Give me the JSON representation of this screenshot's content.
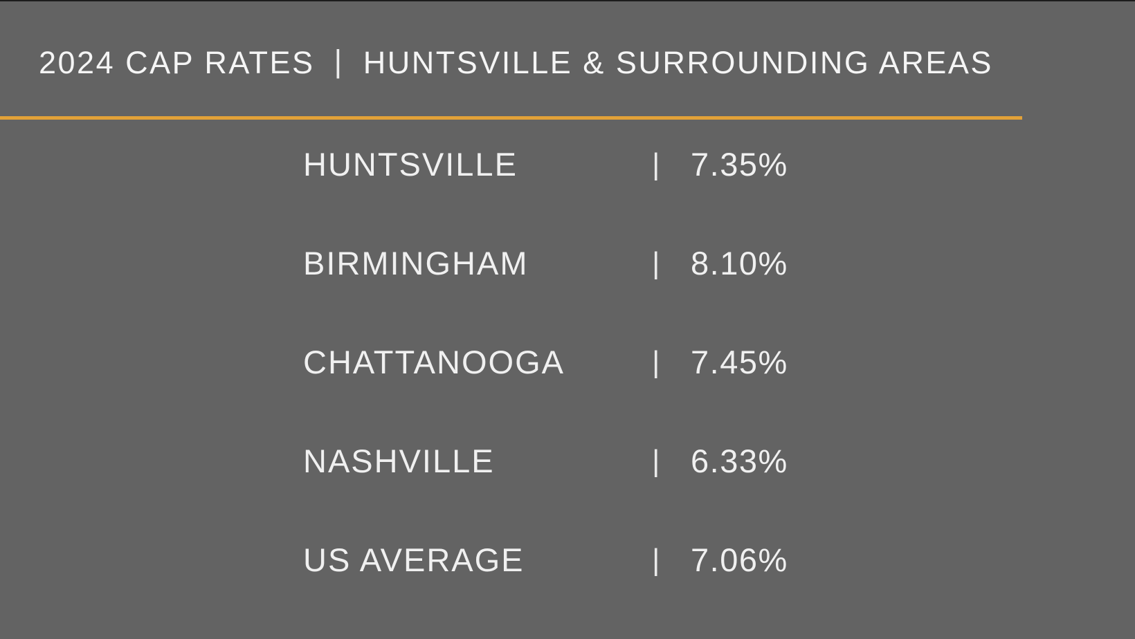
{
  "slide": {
    "title_left": "2024 CAP RATES",
    "title_sep": "|",
    "title_right": "HUNTSVILLE & SURROUNDING AREAS",
    "background_color": "#636363",
    "accent_color": "#E2A138",
    "text_color": "#F0F0F0"
  },
  "rows": [
    {
      "label": "HUNTSVILLE",
      "sep": "|",
      "value": "7.35%"
    },
    {
      "label": "BIRMINGHAM",
      "sep": "|",
      "value": "8.10%"
    },
    {
      "label": "CHATTANOOGA",
      "sep": "|",
      "value": "7.45%"
    },
    {
      "label": "NASHVILLE",
      "sep": "|",
      "value": "6.33%"
    },
    {
      "label": "US AVERAGE",
      "sep": "|",
      "value": "7.06%"
    }
  ],
  "chart_data": {
    "type": "table",
    "title": "2024 CAP RATES | HUNTSVILLE & SURROUNDING AREAS",
    "categories": [
      "HUNTSVILLE",
      "BIRMINGHAM",
      "CHATTANOOGA",
      "NASHVILLE",
      "US AVERAGE"
    ],
    "values": [
      7.35,
      8.1,
      7.45,
      6.33,
      7.06
    ],
    "unit": "%",
    "value_labels": [
      "7.35%",
      "8.10%",
      "7.45%",
      "6.33%",
      "7.06%"
    ]
  }
}
